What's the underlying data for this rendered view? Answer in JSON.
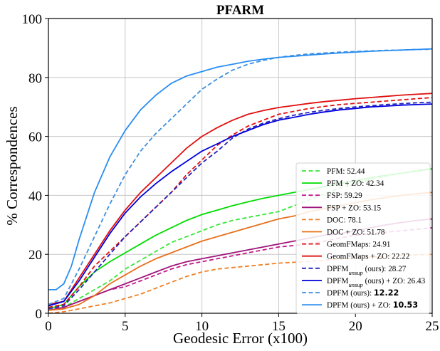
{
  "chart_data": {
    "type": "line",
    "title": "PFARM",
    "xlabel": "Geodesic Error (x100)",
    "ylabel": "% Correspondences",
    "xlim": [
      0,
      25
    ],
    "ylim": [
      0,
      100
    ],
    "xticks": [
      0,
      5,
      10,
      15,
      20,
      25
    ],
    "yticks": [
      0,
      20,
      40,
      60,
      80,
      100
    ],
    "grid": true,
    "legend_position": "lower-right",
    "series": [
      {
        "label": [
          {
            "t": "PFM: 52.44"
          }
        ],
        "color": "#33e833",
        "dash": true,
        "x": [
          0,
          1,
          2,
          3,
          4,
          5,
          6,
          7,
          8,
          9,
          10,
          11,
          12,
          13,
          14,
          15,
          16,
          17,
          18,
          19,
          20,
          21,
          22,
          23,
          24,
          25
        ],
        "y": [
          1,
          2,
          5,
          8,
          11,
          15,
          18,
          21,
          24,
          26,
          28,
          30,
          31.5,
          32.5,
          33.5,
          34.5,
          36.5,
          38.5,
          40.5,
          42.5,
          44,
          45.5,
          46.5,
          47.5,
          48.5,
          49
        ]
      },
      {
        "label": [
          {
            "t": "PFM + ZO: 42.34"
          }
        ],
        "color": "#00dd00",
        "dash": false,
        "x": [
          0,
          1,
          2,
          3,
          4,
          5,
          6,
          7,
          8,
          9,
          10,
          11,
          12,
          13,
          14,
          15,
          16,
          17,
          18,
          19,
          20,
          21,
          22,
          23,
          24,
          25
        ],
        "y": [
          1.5,
          3,
          9,
          14,
          17.5,
          20.5,
          23.5,
          26.5,
          29,
          31.5,
          33.5,
          35,
          36.5,
          37.8,
          39,
          40,
          41,
          42,
          43,
          44,
          45,
          46,
          46.8,
          47.5,
          48.2,
          49
        ]
      },
      {
        "label": [
          {
            "t": "FSP: 59.29"
          }
        ],
        "color": "#c0198a",
        "dash": true,
        "x": [
          0,
          1,
          2,
          3,
          4,
          5,
          6,
          7,
          8,
          9,
          10,
          11,
          12,
          13,
          14,
          15,
          16,
          17,
          18,
          19,
          20,
          21,
          22,
          23,
          24,
          25
        ],
        "y": [
          1,
          2,
          4,
          6,
          8,
          9,
          11,
          13,
          15,
          16.5,
          17.5,
          18.5,
          19.5,
          20.5,
          21.5,
          22.5,
          23,
          23.5,
          24.5,
          25.5,
          26.5,
          27,
          27.5,
          28,
          28.5,
          29
        ]
      },
      {
        "label": [
          {
            "t": "FSP + ZO: 53.15"
          }
        ],
        "color": "#a0157a",
        "dash": false,
        "x": [
          0,
          1,
          2,
          3,
          4,
          5,
          6,
          7,
          8,
          9,
          10,
          11,
          12,
          13,
          14,
          15,
          16,
          17,
          18,
          19,
          20,
          21,
          22,
          23,
          24,
          25
        ],
        "y": [
          1,
          2,
          4,
          6,
          8,
          10,
          12,
          14,
          16,
          17.5,
          18.5,
          19.5,
          20.5,
          21.5,
          22.5,
          23.5,
          24.5,
          25.5,
          26.5,
          27,
          28,
          29,
          30,
          30.8,
          31.5,
          32
        ]
      },
      {
        "label": [
          {
            "t": "DOC: 78.1"
          }
        ],
        "color": "#f07f22",
        "dash": true,
        "x": [
          0,
          1,
          2,
          3,
          4,
          5,
          6,
          7,
          8,
          9,
          10,
          11,
          12,
          13,
          14,
          15,
          16,
          17,
          18,
          19,
          20,
          21,
          22,
          23,
          24,
          25
        ],
        "y": [
          0,
          0.5,
          1.5,
          2.5,
          3.5,
          5,
          6.5,
          8.5,
          10.5,
          12.5,
          14,
          15,
          15.5,
          16,
          16.5,
          17,
          17.3,
          17.6,
          18,
          18.4,
          18.8,
          19,
          19.3,
          19.6,
          19.8,
          20
        ]
      },
      {
        "label": [
          {
            "t": "DOC + ZO: 51.78"
          }
        ],
        "color": "#e8701a",
        "dash": false,
        "x": [
          0,
          1,
          2,
          3,
          4,
          5,
          6,
          7,
          8,
          9,
          10,
          11,
          12,
          13,
          14,
          15,
          16,
          17,
          18,
          19,
          20,
          21,
          22,
          23,
          24,
          25
        ],
        "y": [
          1,
          1.5,
          3,
          6,
          10,
          13,
          16,
          18.5,
          20.5,
          22.5,
          24.5,
          26,
          27.5,
          29,
          30.5,
          32,
          33,
          34.5,
          35.5,
          36.5,
          37.5,
          38.5,
          39.3,
          40,
          40.6,
          41
        ]
      },
      {
        "label": [
          {
            "t": "GeomFMaps: 24.91"
          }
        ],
        "color": "#e01010",
        "dash": true,
        "x": [
          0,
          1,
          2,
          3,
          4,
          5,
          6,
          7,
          8,
          9,
          10,
          11,
          12,
          13,
          14,
          15,
          16,
          17,
          18,
          19,
          20,
          21,
          22,
          23,
          24,
          25
        ],
        "y": [
          2,
          3,
          9,
          16,
          21,
          26,
          31,
          36,
          41,
          47,
          52,
          57,
          60.5,
          63.5,
          65.5,
          67.5,
          68.5,
          69.5,
          70.2,
          70.8,
          71.2,
          71.6,
          72,
          72.4,
          72.8,
          73.2
        ]
      },
      {
        "label": [
          {
            "t": "GeomFMaps + ZO: 22.22"
          }
        ],
        "color": "#e01010",
        "dash": false,
        "x": [
          0,
          1,
          2,
          3,
          4,
          5,
          6,
          7,
          8,
          9,
          10,
          11,
          12,
          13,
          14,
          15,
          16,
          17,
          18,
          19,
          20,
          21,
          22,
          23,
          24,
          25
        ],
        "y": [
          3,
          4,
          12,
          20,
          28,
          35,
          41,
          46,
          51,
          56,
          60,
          63,
          65.5,
          67.5,
          68.8,
          69.8,
          70.5,
          71.2,
          71.8,
          72.3,
          72.8,
          73.2,
          73.6,
          74,
          74.3,
          74.6
        ]
      },
      {
        "label": [
          {
            "t": "DPFM"
          },
          {
            "t": "unsup",
            "s": true
          },
          {
            "t": " (ours): 28.27"
          }
        ],
        "color": "#2222bb",
        "dash": true,
        "x": [
          0,
          1,
          2,
          3,
          4,
          5,
          6,
          7,
          8,
          9,
          10,
          11,
          12,
          13,
          14,
          15,
          16,
          17,
          18,
          19,
          20,
          21,
          22,
          23,
          24,
          25
        ],
        "y": [
          1.5,
          2.5,
          8,
          14,
          20,
          26,
          31,
          36,
          41,
          46,
          51,
          55,
          59.5,
          62.5,
          64.5,
          66,
          67.2,
          68.2,
          68.9,
          69.5,
          70,
          70.4,
          70.8,
          71.1,
          71.4,
          71.6
        ]
      },
      {
        "label": [
          {
            "t": "DPFM"
          },
          {
            "t": "unsup",
            "s": true
          },
          {
            "t": " (ours) + ZO: 26.43"
          }
        ],
        "color": "#0000dd",
        "dash": false,
        "x": [
          0,
          1,
          2,
          3,
          4,
          5,
          6,
          7,
          8,
          9,
          10,
          11,
          12,
          13,
          14,
          15,
          16,
          17,
          18,
          19,
          20,
          21,
          22,
          23,
          24,
          25
        ],
        "y": [
          2.5,
          4,
          11,
          19,
          27,
          34,
          39.5,
          44,
          48,
          51.5,
          55,
          57.5,
          60,
          62,
          64,
          65.5,
          66.5,
          67.5,
          68.3,
          69,
          69.5,
          70,
          70.3,
          70.6,
          70.8,
          71
        ]
      },
      {
        "label": [
          {
            "t": "DPFM (ours): "
          },
          {
            "t": "12.22",
            "b": true
          }
        ],
        "color": "#3d8fdf",
        "dash": true,
        "x": [
          0,
          1,
          2,
          3,
          4,
          5,
          6,
          7,
          8,
          9,
          10,
          11,
          12,
          13,
          14,
          15,
          16,
          17,
          18,
          19,
          20,
          21,
          22,
          23,
          24,
          25
        ],
        "y": [
          3,
          5,
          15,
          26,
          37,
          47,
          55,
          61,
          66,
          71,
          76,
          79.5,
          82.5,
          84.5,
          85.8,
          86.8,
          87.5,
          88,
          88.3,
          88.6,
          88.8,
          89,
          89.2,
          89.3,
          89.5,
          89.6
        ]
      },
      {
        "label": [
          {
            "t": "DPFM (ours) + ZO: "
          },
          {
            "t": "10.53",
            "b": true
          }
        ],
        "color": "#2a8ef0",
        "dash": false,
        "x": [
          0,
          0.5,
          1,
          1.5,
          2,
          2.5,
          3,
          4,
          5,
          6,
          7,
          8,
          9,
          10,
          11,
          12,
          13,
          14,
          15,
          16,
          17,
          18,
          19,
          20,
          21,
          22,
          23,
          24,
          25
        ],
        "y": [
          8,
          8,
          10,
          16,
          25,
          33,
          41,
          53,
          62,
          69,
          74,
          78,
          80.5,
          82,
          83.5,
          84.5,
          85.5,
          86.2,
          86.8,
          87.2,
          87.6,
          88,
          88.3,
          88.6,
          88.9,
          89.1,
          89.3,
          89.5,
          89.7
        ]
      }
    ]
  }
}
